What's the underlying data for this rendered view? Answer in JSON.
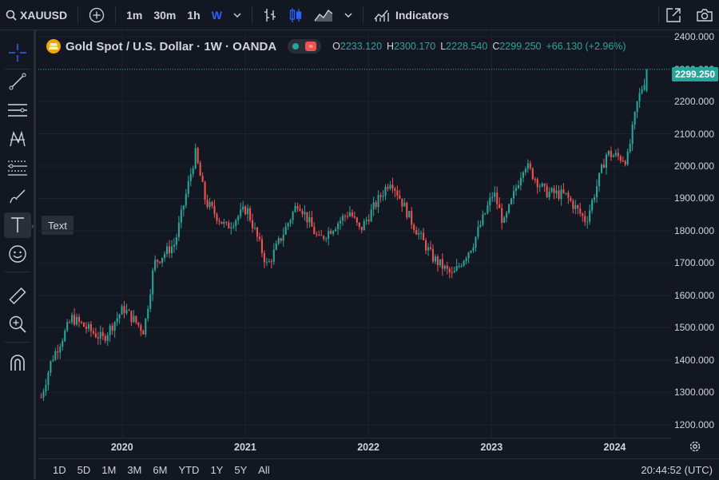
{
  "topbar": {
    "symbol": "XAUUSD",
    "intervals": [
      "1m",
      "30m",
      "1h",
      "W"
    ],
    "active_interval": "W",
    "indicators_label": "Indicators"
  },
  "lefttools": {
    "tooltip": "Text",
    "selected_tool": "text"
  },
  "legend": {
    "title": "Gold Spot / U.S. Dollar · 1W · OANDA",
    "open_key": "O",
    "open": "2233.120",
    "high_key": "H",
    "high": "2300.170",
    "low_key": "L",
    "low": "2228.540",
    "close_key": "C",
    "close": "2299.250",
    "change": "+66.130 (+2.96%)"
  },
  "price_axis": {
    "labels": [
      "2400.000",
      "2300.000",
      "2200.000",
      "2100.000",
      "2000.000",
      "1900.000",
      "1800.000",
      "1700.000",
      "1600.000",
      "1500.000",
      "1400.000",
      "1300.000",
      "1200.000"
    ],
    "last_price": "2299.250",
    "last_price_color": "#26a69a"
  },
  "time_axis": {
    "labels": [
      "2020",
      "2021",
      "2022",
      "2023",
      "2024"
    ]
  },
  "bottombar": {
    "ranges": [
      "1D",
      "5D",
      "1M",
      "3M",
      "6M",
      "YTD",
      "1Y",
      "5Y",
      "All"
    ],
    "clock": "20:44:52 (UTC)"
  },
  "colors": {
    "up": "#26a69a",
    "down": "#ef5350",
    "background": "#131722",
    "grid": "#1e222d",
    "accent": "#2962ff"
  },
  "chart_data": {
    "type": "candlestick",
    "x_range": [
      "2019-05",
      "2024-04"
    ],
    "ylim": [
      1160,
      2420
    ],
    "anchors": [
      {
        "x": "2019-05",
        "close": 1285
      },
      {
        "x": "2019-06",
        "close": 1400
      },
      {
        "x": "2019-08",
        "close": 1530
      },
      {
        "x": "2019-11",
        "close": 1465
      },
      {
        "x": "2020-01",
        "close": 1560
      },
      {
        "x": "2020-03",
        "close": 1490
      },
      {
        "x": "2020-04",
        "close": 1700
      },
      {
        "x": "2020-06",
        "close": 1760
      },
      {
        "x": "2020-08",
        "close": 2040
      },
      {
        "x": "2020-09",
        "close": 1890
      },
      {
        "x": "2020-11",
        "close": 1810
      },
      {
        "x": "2021-01",
        "close": 1870
      },
      {
        "x": "2021-03",
        "close": 1690
      },
      {
        "x": "2021-06",
        "close": 1890
      },
      {
        "x": "2021-08",
        "close": 1770
      },
      {
        "x": "2021-11",
        "close": 1860
      },
      {
        "x": "2021-12",
        "close": 1800
      },
      {
        "x": "2022-03",
        "close": 1960
      },
      {
        "x": "2022-05",
        "close": 1830
      },
      {
        "x": "2022-07",
        "close": 1720
      },
      {
        "x": "2022-09",
        "close": 1660
      },
      {
        "x": "2022-11",
        "close": 1760
      },
      {
        "x": "2023-01",
        "close": 1920
      },
      {
        "x": "2023-02",
        "close": 1820
      },
      {
        "x": "2023-04",
        "close": 2010
      },
      {
        "x": "2023-06",
        "close": 1920
      },
      {
        "x": "2023-08",
        "close": 1910
      },
      {
        "x": "2023-10",
        "close": 1830
      },
      {
        "x": "2023-12",
        "close": 2040
      },
      {
        "x": "2024-02",
        "close": 2020
      },
      {
        "x": "2024-03",
        "close": 2200
      },
      {
        "x": "2024-04",
        "close": 2299
      }
    ]
  }
}
